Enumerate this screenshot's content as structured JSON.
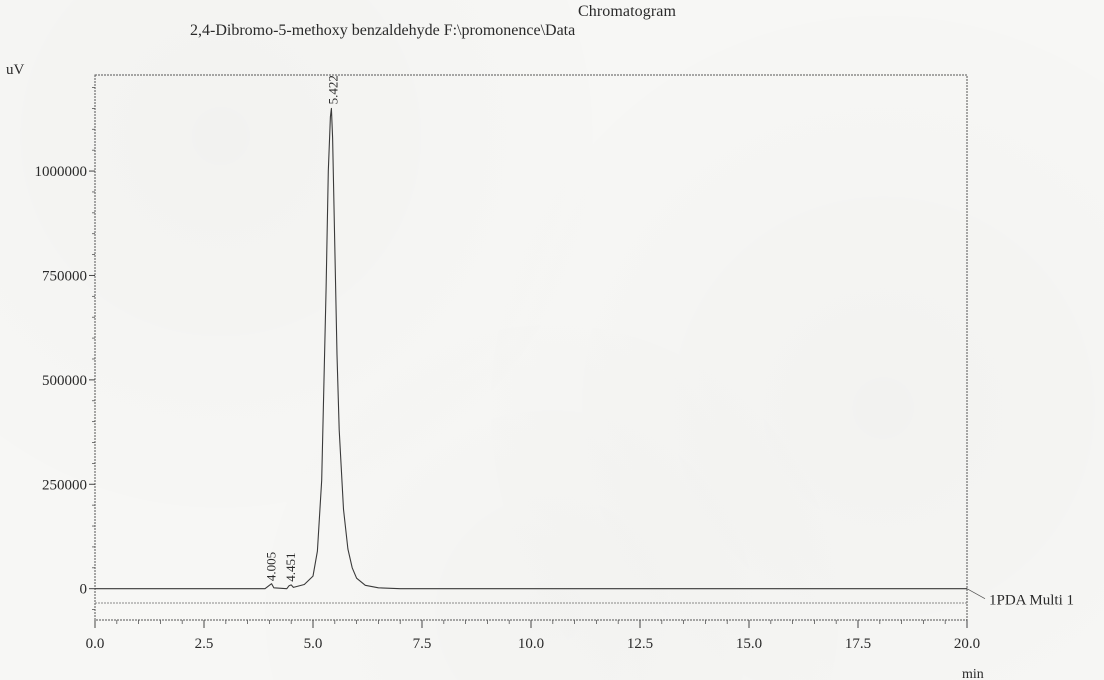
{
  "chart_data": {
    "type": "line",
    "title": "Chromatogram",
    "subtitle": "2,4-Dibromo-5-methoxy benzaldehyde F:\\promonence\\Data",
    "xlabel": "min",
    "ylabel": "uV",
    "xlim": [
      0.0,
      20.0
    ],
    "ylim": [
      -75000,
      1230000
    ],
    "x_ticks": [
      0.0,
      2.5,
      5.0,
      7.5,
      10.0,
      12.5,
      15.0,
      17.5,
      20.0
    ],
    "x_tick_labels": [
      "0.0",
      "2.5",
      "5.0",
      "7.5",
      "10.0",
      "12.5",
      "15.0",
      "17.5",
      "20.0"
    ],
    "y_ticks": [
      0,
      250000,
      500000,
      750000,
      1000000
    ],
    "y_tick_labels": [
      "0",
      "250000",
      "500000",
      "750000",
      "1000000"
    ],
    "grid": false,
    "series": [
      {
        "name": "1PDA Multi 1",
        "x": [
          0.0,
          3.9,
          4.0,
          4.05,
          4.1,
          4.4,
          4.45,
          4.5,
          4.55,
          4.8,
          5.0,
          5.1,
          5.2,
          5.3,
          5.35,
          5.4,
          5.422,
          5.45,
          5.5,
          5.55,
          5.6,
          5.7,
          5.8,
          5.9,
          6.0,
          6.2,
          6.5,
          7.0,
          10.0,
          15.0,
          20.0
        ],
        "y": [
          0,
          0,
          8000,
          12000,
          2000,
          0,
          7000,
          9000,
          3000,
          10000,
          30000,
          90000,
          260000,
          720000,
          1000000,
          1130000,
          1150000,
          1080000,
          820000,
          560000,
          380000,
          190000,
          95000,
          50000,
          25000,
          8000,
          2000,
          0,
          0,
          0,
          0
        ]
      }
    ],
    "peaks": [
      {
        "rt": 4.005,
        "label": "4.005"
      },
      {
        "rt": 4.451,
        "label": "4.451"
      },
      {
        "rt": 5.422,
        "label": "5.422"
      }
    ],
    "legend": {
      "entries": [
        "1PDA Multi 1"
      ],
      "placement": "right"
    }
  }
}
